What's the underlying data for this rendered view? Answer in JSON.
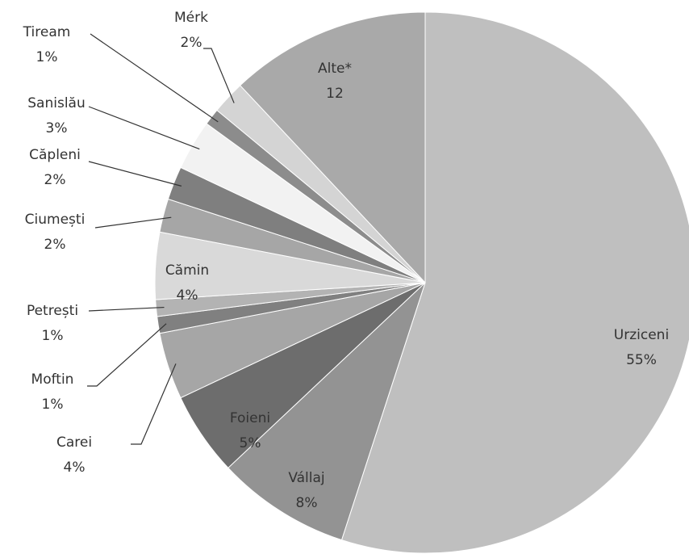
{
  "chart_data": {
    "type": "pie",
    "categories": [
      "Urziceni",
      "Vállaj",
      "Foieni",
      "Carei",
      "Moftin",
      "Petrești",
      "Cămin",
      "Ciumești",
      "Căpleni",
      "Sanislău",
      "Tiream",
      "Mérk",
      "Alte*"
    ],
    "values": [
      55,
      8,
      5,
      4,
      1,
      1,
      4,
      2,
      2,
      3,
      1,
      2,
      12
    ],
    "value_labels": [
      "55%",
      "8%",
      "5%",
      "4%",
      "1%",
      "1%",
      "4%",
      "2%",
      "2%",
      "3%",
      "1%",
      "2%",
      "12"
    ],
    "colors": [
      "#bfbfbf",
      "#939393",
      "#6d6d6d",
      "#a6a6a6",
      "#808080",
      "#b3b3b3",
      "#d9d9d9",
      "#a6a6a6",
      "#7f7f7f",
      "#f2f2f2",
      "#8c8c8c",
      "#d4d4d4",
      "#a9a9a9"
    ]
  }
}
